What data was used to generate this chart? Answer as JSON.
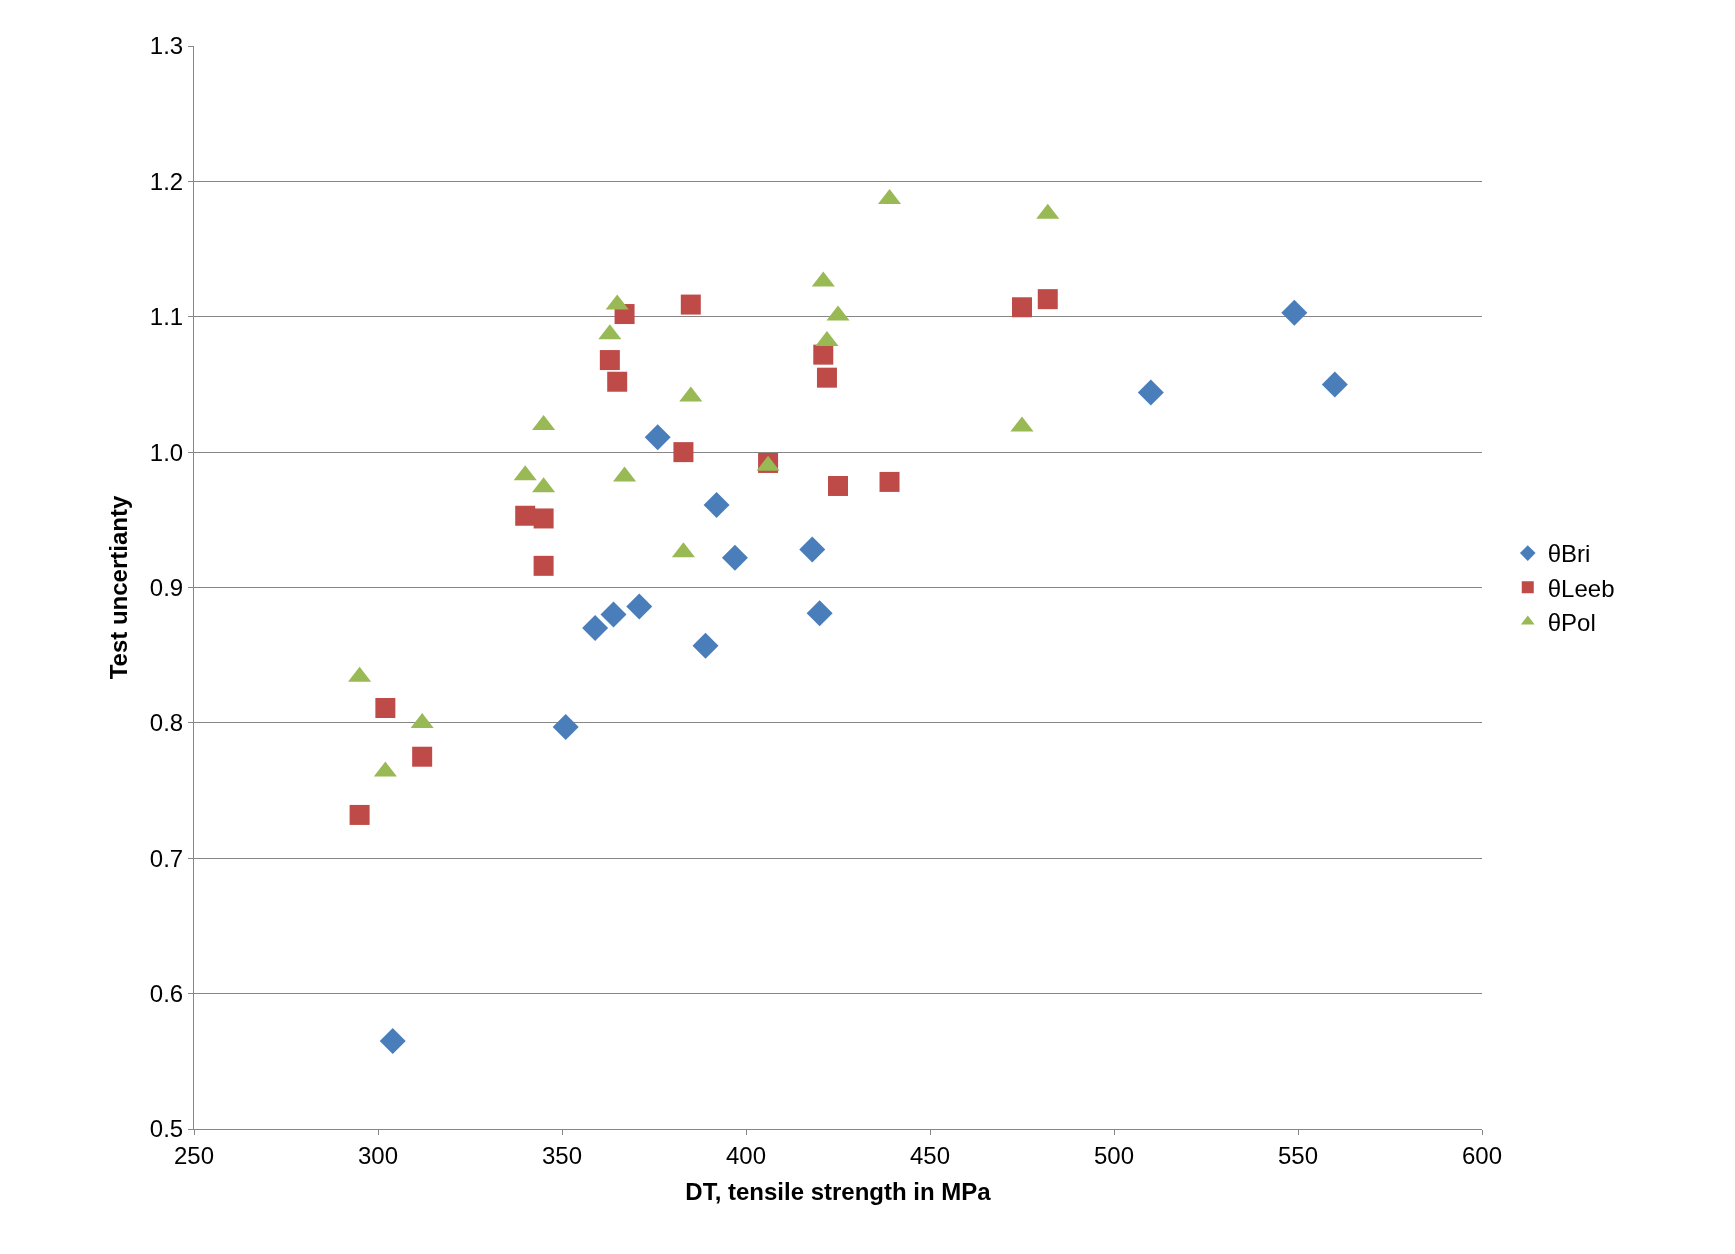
{
  "chart_data": {
    "type": "scatter",
    "xlabel": "DT, tensile strength in MPa",
    "ylabel": "Test uncertianty",
    "xlim": [
      250,
      600
    ],
    "xticks": [
      250,
      300,
      350,
      400,
      450,
      500,
      550,
      600
    ],
    "ylim": [
      0.5,
      1.3
    ],
    "yticks": [
      {
        "value": 0.5,
        "label": "0.5"
      },
      {
        "value": 0.6,
        "label": "0.6"
      },
      {
        "value": 0.7,
        "label": "0.7"
      },
      {
        "value": 0.8,
        "label": "0.8"
      },
      {
        "value": 0.9,
        "label": "0.9"
      },
      {
        "value": 1.0,
        "label": "1.0"
      },
      {
        "value": 1.1,
        "label": "1.1"
      },
      {
        "value": 1.2,
        "label": "1.2"
      },
      {
        "value": 1.3,
        "label": "1.3"
      }
    ],
    "grid": "y",
    "legend": "right",
    "series": [
      {
        "name": "θBri",
        "color": "#4a7ebb",
        "marker": "diamond",
        "x": [
          304,
          351,
          359,
          364,
          371,
          376,
          389,
          392,
          397,
          418,
          420,
          510,
          549,
          560
        ],
        "values": [
          0.565,
          0.797,
          0.87,
          0.88,
          0.886,
          1.011,
          0.857,
          0.961,
          0.922,
          0.928,
          0.881,
          1.044,
          1.103,
          1.05
        ]
      },
      {
        "name": "θLeeb",
        "color": "#be4b48",
        "marker": "square",
        "x": [
          295,
          302,
          312,
          340,
          345,
          345,
          363,
          365,
          367,
          383,
          385,
          406,
          421,
          422,
          425,
          439,
          475,
          482
        ],
        "values": [
          0.732,
          0.811,
          0.775,
          0.953,
          0.951,
          0.916,
          1.068,
          1.052,
          1.102,
          1.0,
          1.109,
          0.992,
          1.072,
          1.055,
          0.975,
          0.978,
          1.107,
          1.113
        ]
      },
      {
        "name": "θPol",
        "color": "#98b954",
        "marker": "triangle",
        "x": [
          295,
          302,
          312,
          340,
          345,
          345,
          363,
          365,
          367,
          383,
          385,
          406,
          421,
          422,
          425,
          439,
          475,
          482
        ],
        "values": [
          0.834,
          0.764,
          0.8,
          0.983,
          1.02,
          0.974,
          1.087,
          1.109,
          0.982,
          0.926,
          1.041,
          0.99,
          1.126,
          1.082,
          1.101,
          1.187,
          1.019,
          1.176
        ]
      }
    ]
  }
}
